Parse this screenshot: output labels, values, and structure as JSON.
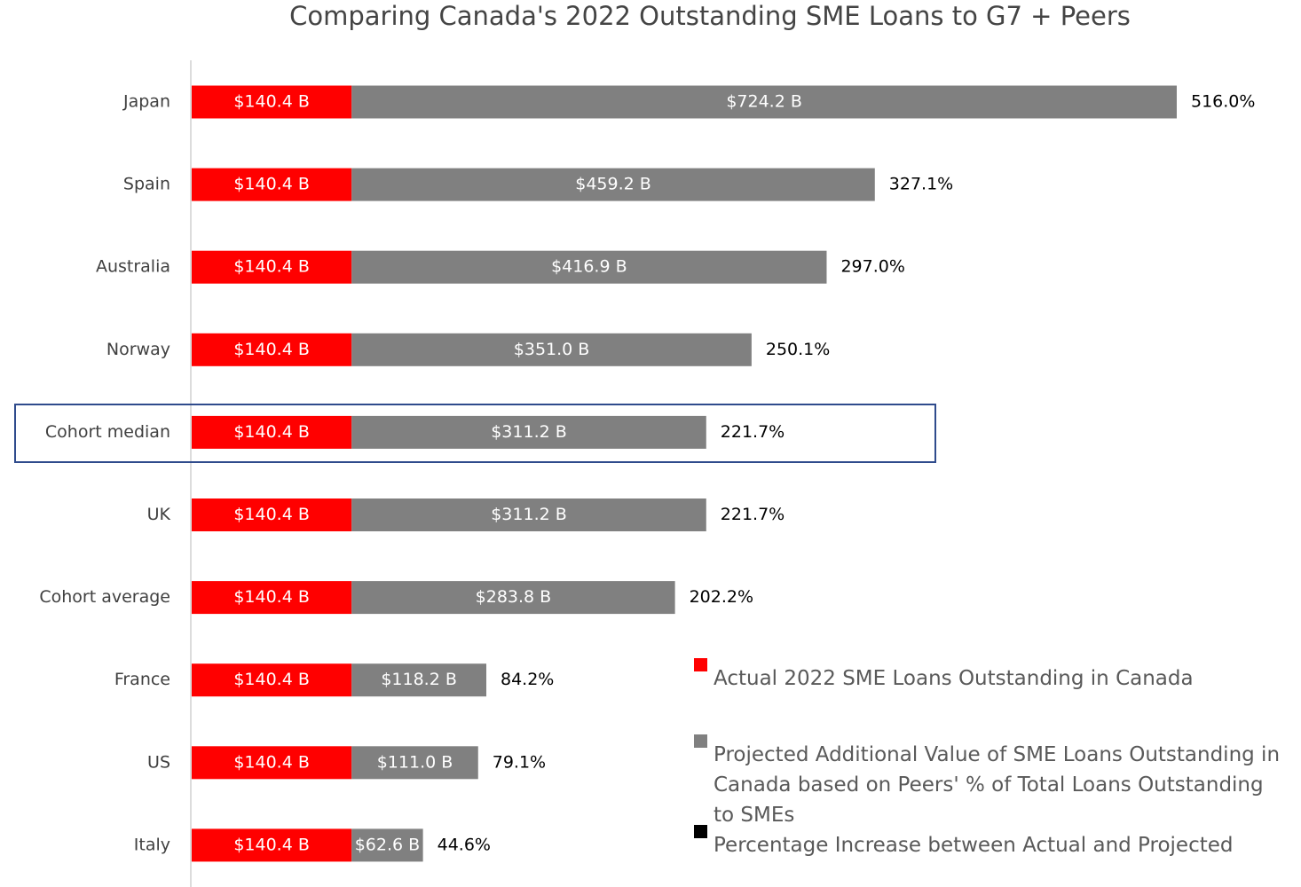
{
  "chart_data": {
    "type": "stacked-bar-horizontal",
    "title": "Comparing Canada's 2022 Outstanding SME Loans to G7 + Peers",
    "categories": [
      "Japan",
      "Spain",
      "Australia",
      "Norway",
      "Cohort median",
      "UK",
      "Cohort average",
      "France",
      "US",
      "Italy"
    ],
    "series": [
      {
        "name": "Actual 2022 SME Loans Outstanding in Canada",
        "color": "#ff0000",
        "values": [
          140.4,
          140.4,
          140.4,
          140.4,
          140.4,
          140.4,
          140.4,
          140.4,
          140.4,
          140.4
        ],
        "value_labels": [
          "$140.4 B",
          "$140.4 B",
          "$140.4 B",
          "$140.4 B",
          "$140.4 B",
          "$140.4 B",
          "$140.4 B",
          "$140.4 B",
          "$140.4 B",
          "$140.4 B"
        ]
      },
      {
        "name": "Projected Additional Value of SME Loans Outstanding in Canada based on Peers' % of Total Loans Outstanding to SMEs",
        "color": "#808080",
        "values": [
          724.2,
          459.2,
          416.9,
          351.0,
          311.2,
          311.2,
          283.8,
          118.2,
          111.0,
          62.6
        ],
        "value_labels": [
          "$724.2 B",
          "$459.2 B",
          "$416.9 B",
          "$351.0 B",
          "$311.2 B",
          "$311.2 B",
          "$283.8 B",
          "$118.2 B",
          "$111.0 B",
          "$62.6 B"
        ]
      },
      {
        "name": "Percentage Increase between Actual and Projected",
        "color": "#000000",
        "values": [
          516.0,
          327.1,
          297.0,
          250.1,
          221.7,
          221.7,
          202.2,
          84.2,
          79.1,
          44.6
        ],
        "value_labels": [
          "516.0%",
          "327.1%",
          "297.0%",
          "250.1%",
          "221.7%",
          "221.7%",
          "202.2%",
          "84.2%",
          "79.1%",
          "44.6%"
        ]
      }
    ]
  }
}
